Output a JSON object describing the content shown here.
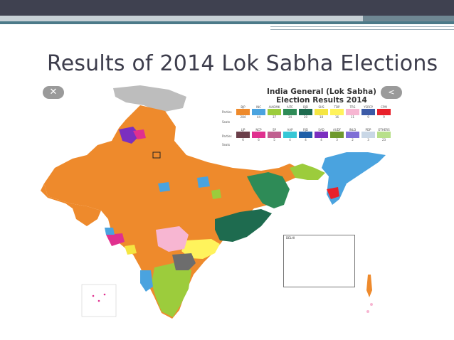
{
  "slide": {
    "title": "Results of 2014 Lok Sabha Elections"
  },
  "map": {
    "legend_title_line1": "India General (Lok Sabha)",
    "legend_title_line2": "Election Results 2014",
    "close_glyph": "✕",
    "share_glyph": "<",
    "row1_parties_label": "Parties",
    "row1_seats_label": "Seats",
    "row1": [
      {
        "party": "BJP",
        "seats": "284",
        "color": "#ee8a2c"
      },
      {
        "party": "INC",
        "seats": "44",
        "color": "#4aa3df"
      },
      {
        "party": "AIADMK",
        "seats": "37",
        "color": "#9ccc3c"
      },
      {
        "party": "AITC",
        "seats": "34",
        "color": "#2e8b57"
      },
      {
        "party": "BJD",
        "seats": "20",
        "color": "#1e6b4f"
      },
      {
        "party": "SHS",
        "seats": "18",
        "color": "#f5e642"
      },
      {
        "party": "TDP",
        "seats": "16",
        "color": "#fff35c"
      },
      {
        "party": "TRS",
        "seats": "11",
        "color": "#f7b6d2"
      },
      {
        "party": "YSRCP",
        "seats": "9",
        "color": "#3c5aa6"
      },
      {
        "party": "CPM",
        "seats": "9",
        "color": "#e8202a"
      }
    ],
    "row2_parties_label": "Parties",
    "row2_seats_label": "Seats",
    "row2": [
      {
        "party": "LJP",
        "seats": "6",
        "color": "#6b3f4a"
      },
      {
        "party": "NCP",
        "seats": "6",
        "color": "#e0308f"
      },
      {
        "party": "SP",
        "seats": "5",
        "color": "#c06090"
      },
      {
        "party": "AAP",
        "seats": "4",
        "color": "#36c7d6"
      },
      {
        "party": "RJD",
        "seats": "4",
        "color": "#1f5fa8"
      },
      {
        "party": "SAD",
        "seats": "4",
        "color": "#7b2fbf"
      },
      {
        "party": "AUDF",
        "seats": "3",
        "color": "#6f9a2e"
      },
      {
        "party": "INLD",
        "seats": "2",
        "color": "#7f6fd6"
      },
      {
        "party": "PDP",
        "seats": "3",
        "color": "#c9d7e6"
      },
      {
        "party": "OTHERS",
        "seats": "23",
        "color": "#b8e08a"
      }
    ],
    "inset_label": "DELHI"
  }
}
